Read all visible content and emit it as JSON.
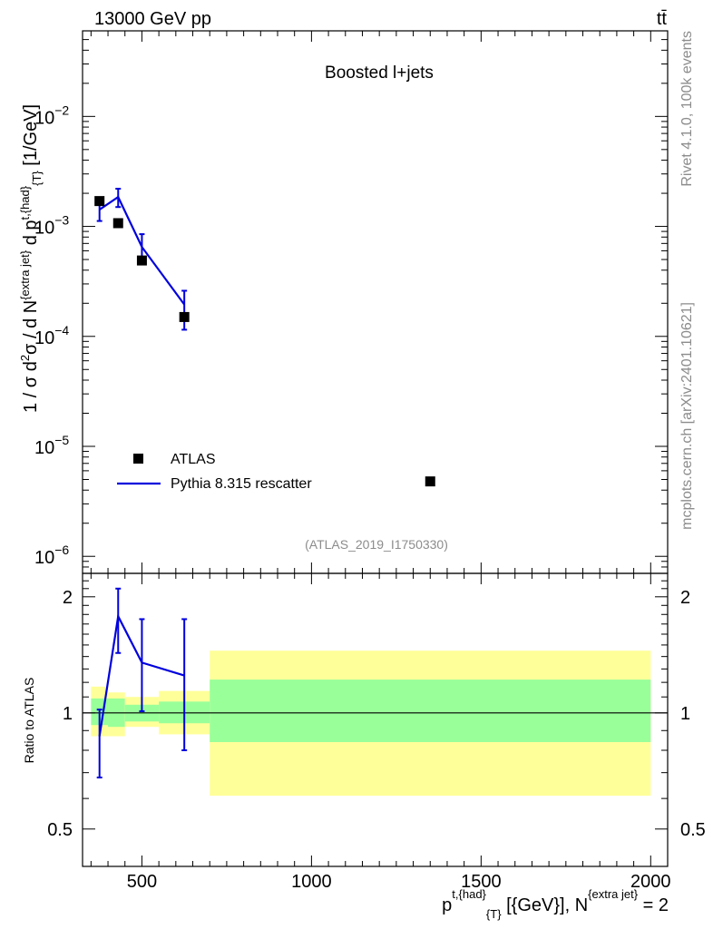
{
  "header": {
    "energy_label": "13000 GeV pp",
    "process_label": "tt̄"
  },
  "side": {
    "rivet_label": "Rivet 4.1.0,  100k events",
    "mcplots_label": "mcplots.cern.ch [arXiv:2401.10621]"
  },
  "plot": {
    "panel_title": "Boosted l+jets",
    "analysis_id": "(ATLAS_2019_I1750330)",
    "ylabel_main": "1 / σ d²σ / d N^{extra jet} d p^{t,{had}}_{T} [1/GeV]",
    "ylabel_ratio": "Ratio to ATLAS",
    "xlabel": "p^{t,{had}}_{T} [{GeV}], N^{extra jet} = 2"
  },
  "legend": {
    "data_label": "ATLAS",
    "mc_label": "Pythia 8.315 rescatter"
  },
  "colors": {
    "mc_line": "#0000dd",
    "band_inner": "#99ff99",
    "band_outer": "#ffff99",
    "data_marker": "#000000"
  },
  "chart_data": {
    "type": "scatter",
    "xlim": [
      325,
      2050
    ],
    "ylim_main": [
      7e-07,
      0.06
    ],
    "yscale_main": "log",
    "ylim_ratio": [
      0.4,
      2.3
    ],
    "yscale_ratio": "log",
    "xticks": [
      500,
      1000,
      1500,
      2000
    ],
    "main_yticks": [
      {
        "value": 0.01,
        "exp": "−2"
      },
      {
        "value": 0.001,
        "exp": "−3"
      },
      {
        "value": 0.0001,
        "exp": "−4"
      },
      {
        "value": 1e-05,
        "exp": "−5"
      },
      {
        "value": 1e-06,
        "exp": "−6"
      }
    ],
    "ratio_yticks": [
      {
        "value": 2,
        "label": "2"
      },
      {
        "value": 1,
        "label": "1"
      },
      {
        "value": 0.5,
        "label": "0.5"
      }
    ],
    "data_series": {
      "name": "ATLAS",
      "points": [
        {
          "x": 375,
          "y": 0.0017
        },
        {
          "x": 430,
          "y": 0.00107
        },
        {
          "x": 500,
          "y": 0.00049
        },
        {
          "x": 625,
          "y": 0.00015
        },
        {
          "x": 1350,
          "y": 4.8e-06
        }
      ]
    },
    "mc_series": {
      "name": "Pythia 8.315 rescatter",
      "points": [
        {
          "x": 375,
          "y": 0.00142,
          "ylo": 0.00112,
          "yhi": 0.00175
        },
        {
          "x": 430,
          "y": 0.00185,
          "ylo": 0.0015,
          "yhi": 0.0022
        },
        {
          "x": 500,
          "y": 0.00065,
          "ylo": 0.0005,
          "yhi": 0.00085
        },
        {
          "x": 625,
          "y": 0.000195,
          "ylo": 0.000115,
          "yhi": 0.00026
        }
      ]
    },
    "ratio_series": {
      "name": "Pythia 8.315 rescatter / ATLAS",
      "points": [
        {
          "x": 375,
          "y": 0.87,
          "ylo": 0.68,
          "yhi": 1.02
        },
        {
          "x": 430,
          "y": 1.78,
          "ylo": 1.43,
          "yhi": 2.1
        },
        {
          "x": 500,
          "y": 1.35,
          "ylo": 1.01,
          "yhi": 1.75
        },
        {
          "x": 625,
          "y": 1.25,
          "ylo": 0.8,
          "yhi": 1.75
        }
      ]
    },
    "uncertainty_bands": [
      {
        "x0": 350,
        "x1": 400,
        "inner": [
          0.93,
          1.09
        ],
        "outer": [
          0.87,
          1.17
        ]
      },
      {
        "x0": 400,
        "x1": 450,
        "inner": [
          0.92,
          1.09
        ],
        "outer": [
          0.87,
          1.13
        ]
      },
      {
        "x0": 450,
        "x1": 550,
        "inner": [
          0.95,
          1.05
        ],
        "outer": [
          0.92,
          1.1
        ]
      },
      {
        "x0": 550,
        "x1": 700,
        "inner": [
          0.94,
          1.07
        ],
        "outer": [
          0.88,
          1.14
        ]
      },
      {
        "x0": 700,
        "x1": 2000,
        "inner": [
          0.84,
          1.22
        ],
        "outer": [
          0.61,
          1.45
        ]
      }
    ]
  }
}
